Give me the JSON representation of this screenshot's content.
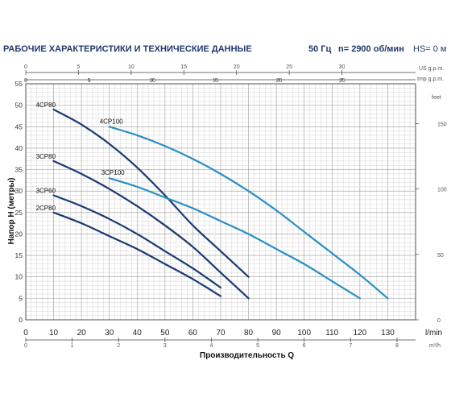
{
  "header": {
    "title": "РАБОЧИЕ ХАРАКТЕРИСТИКИ И ТЕХНИЧЕСКИЕ ДАННЫЕ",
    "freq": "50 Гц",
    "rpm": "n= 2900 об/мин",
    "hs": "HS= 0 м"
  },
  "colors": {
    "dark_curve": "#1b3a73",
    "light_curve": "#2a8fc4",
    "grid": "#c9c9c9",
    "text": "#1f3a6b"
  },
  "chart_data": {
    "type": "line",
    "xlabel": "Производительность Q",
    "ylabel": "Напор H (метры)",
    "xlim": [
      0,
      140
    ],
    "ylim": [
      0,
      55
    ],
    "x_unit_main": "l/min",
    "x_ticks_main": [
      0,
      10,
      20,
      30,
      40,
      50,
      60,
      70,
      80,
      90,
      100,
      110,
      120,
      130
    ],
    "y_ticks": [
      0,
      5,
      10,
      15,
      20,
      25,
      30,
      35,
      40,
      45,
      50,
      55
    ],
    "x2_unit": "m³/h",
    "x2_ticks": [
      "0",
      "1",
      "2",
      "3",
      "4",
      "5",
      "6",
      "7",
      "8"
    ],
    "us_unit": "US g.p.m.",
    "us_ticks": [
      "0",
      "5",
      "10",
      "15",
      "20",
      "25",
      "30"
    ],
    "imp_unit": "Imp g.p.m.",
    "imp_ticks": [
      "0",
      "5",
      "10",
      "15",
      "20",
      "25"
    ],
    "feet_unit": "feet",
    "feet_ticks": [
      "0",
      "50",
      "100",
      "150"
    ],
    "series": [
      {
        "name": "4CP80",
        "style": "dark",
        "x": [
          10,
          20,
          30,
          40,
          50,
          60,
          70,
          80
        ],
        "y": [
          49,
          45.5,
          41,
          35.5,
          29,
          22,
          16,
          10
        ]
      },
      {
        "name": "3CP80",
        "style": "dark",
        "x": [
          10,
          20,
          30,
          40,
          50,
          60,
          70,
          80
        ],
        "y": [
          37,
          34,
          30.5,
          26.5,
          22,
          17,
          11,
          5
        ]
      },
      {
        "name": "3CP60",
        "style": "dark",
        "x": [
          10,
          20,
          30,
          40,
          50,
          60,
          70
        ],
        "y": [
          29,
          26.5,
          23.5,
          20,
          16,
          12,
          7.5
        ]
      },
      {
        "name": "2CP80",
        "style": "dark",
        "x": [
          10,
          20,
          30,
          40,
          50,
          60,
          70
        ],
        "y": [
          25,
          22.5,
          19.5,
          16.5,
          13,
          9.5,
          5.5
        ]
      },
      {
        "name": "4CP100",
        "style": "light",
        "x": [
          30,
          40,
          50,
          60,
          70,
          80,
          90,
          100,
          110,
          120,
          130
        ],
        "y": [
          45,
          43,
          40.5,
          37.5,
          34,
          30,
          25.5,
          20.5,
          15.5,
          10.5,
          5
        ]
      },
      {
        "name": "3CP100",
        "style": "light",
        "x": [
          30,
          40,
          50,
          60,
          70,
          80,
          90,
          100,
          110,
          120
        ],
        "y": [
          33,
          31,
          28.5,
          26,
          23,
          20,
          16.5,
          13,
          9,
          5
        ]
      }
    ]
  }
}
